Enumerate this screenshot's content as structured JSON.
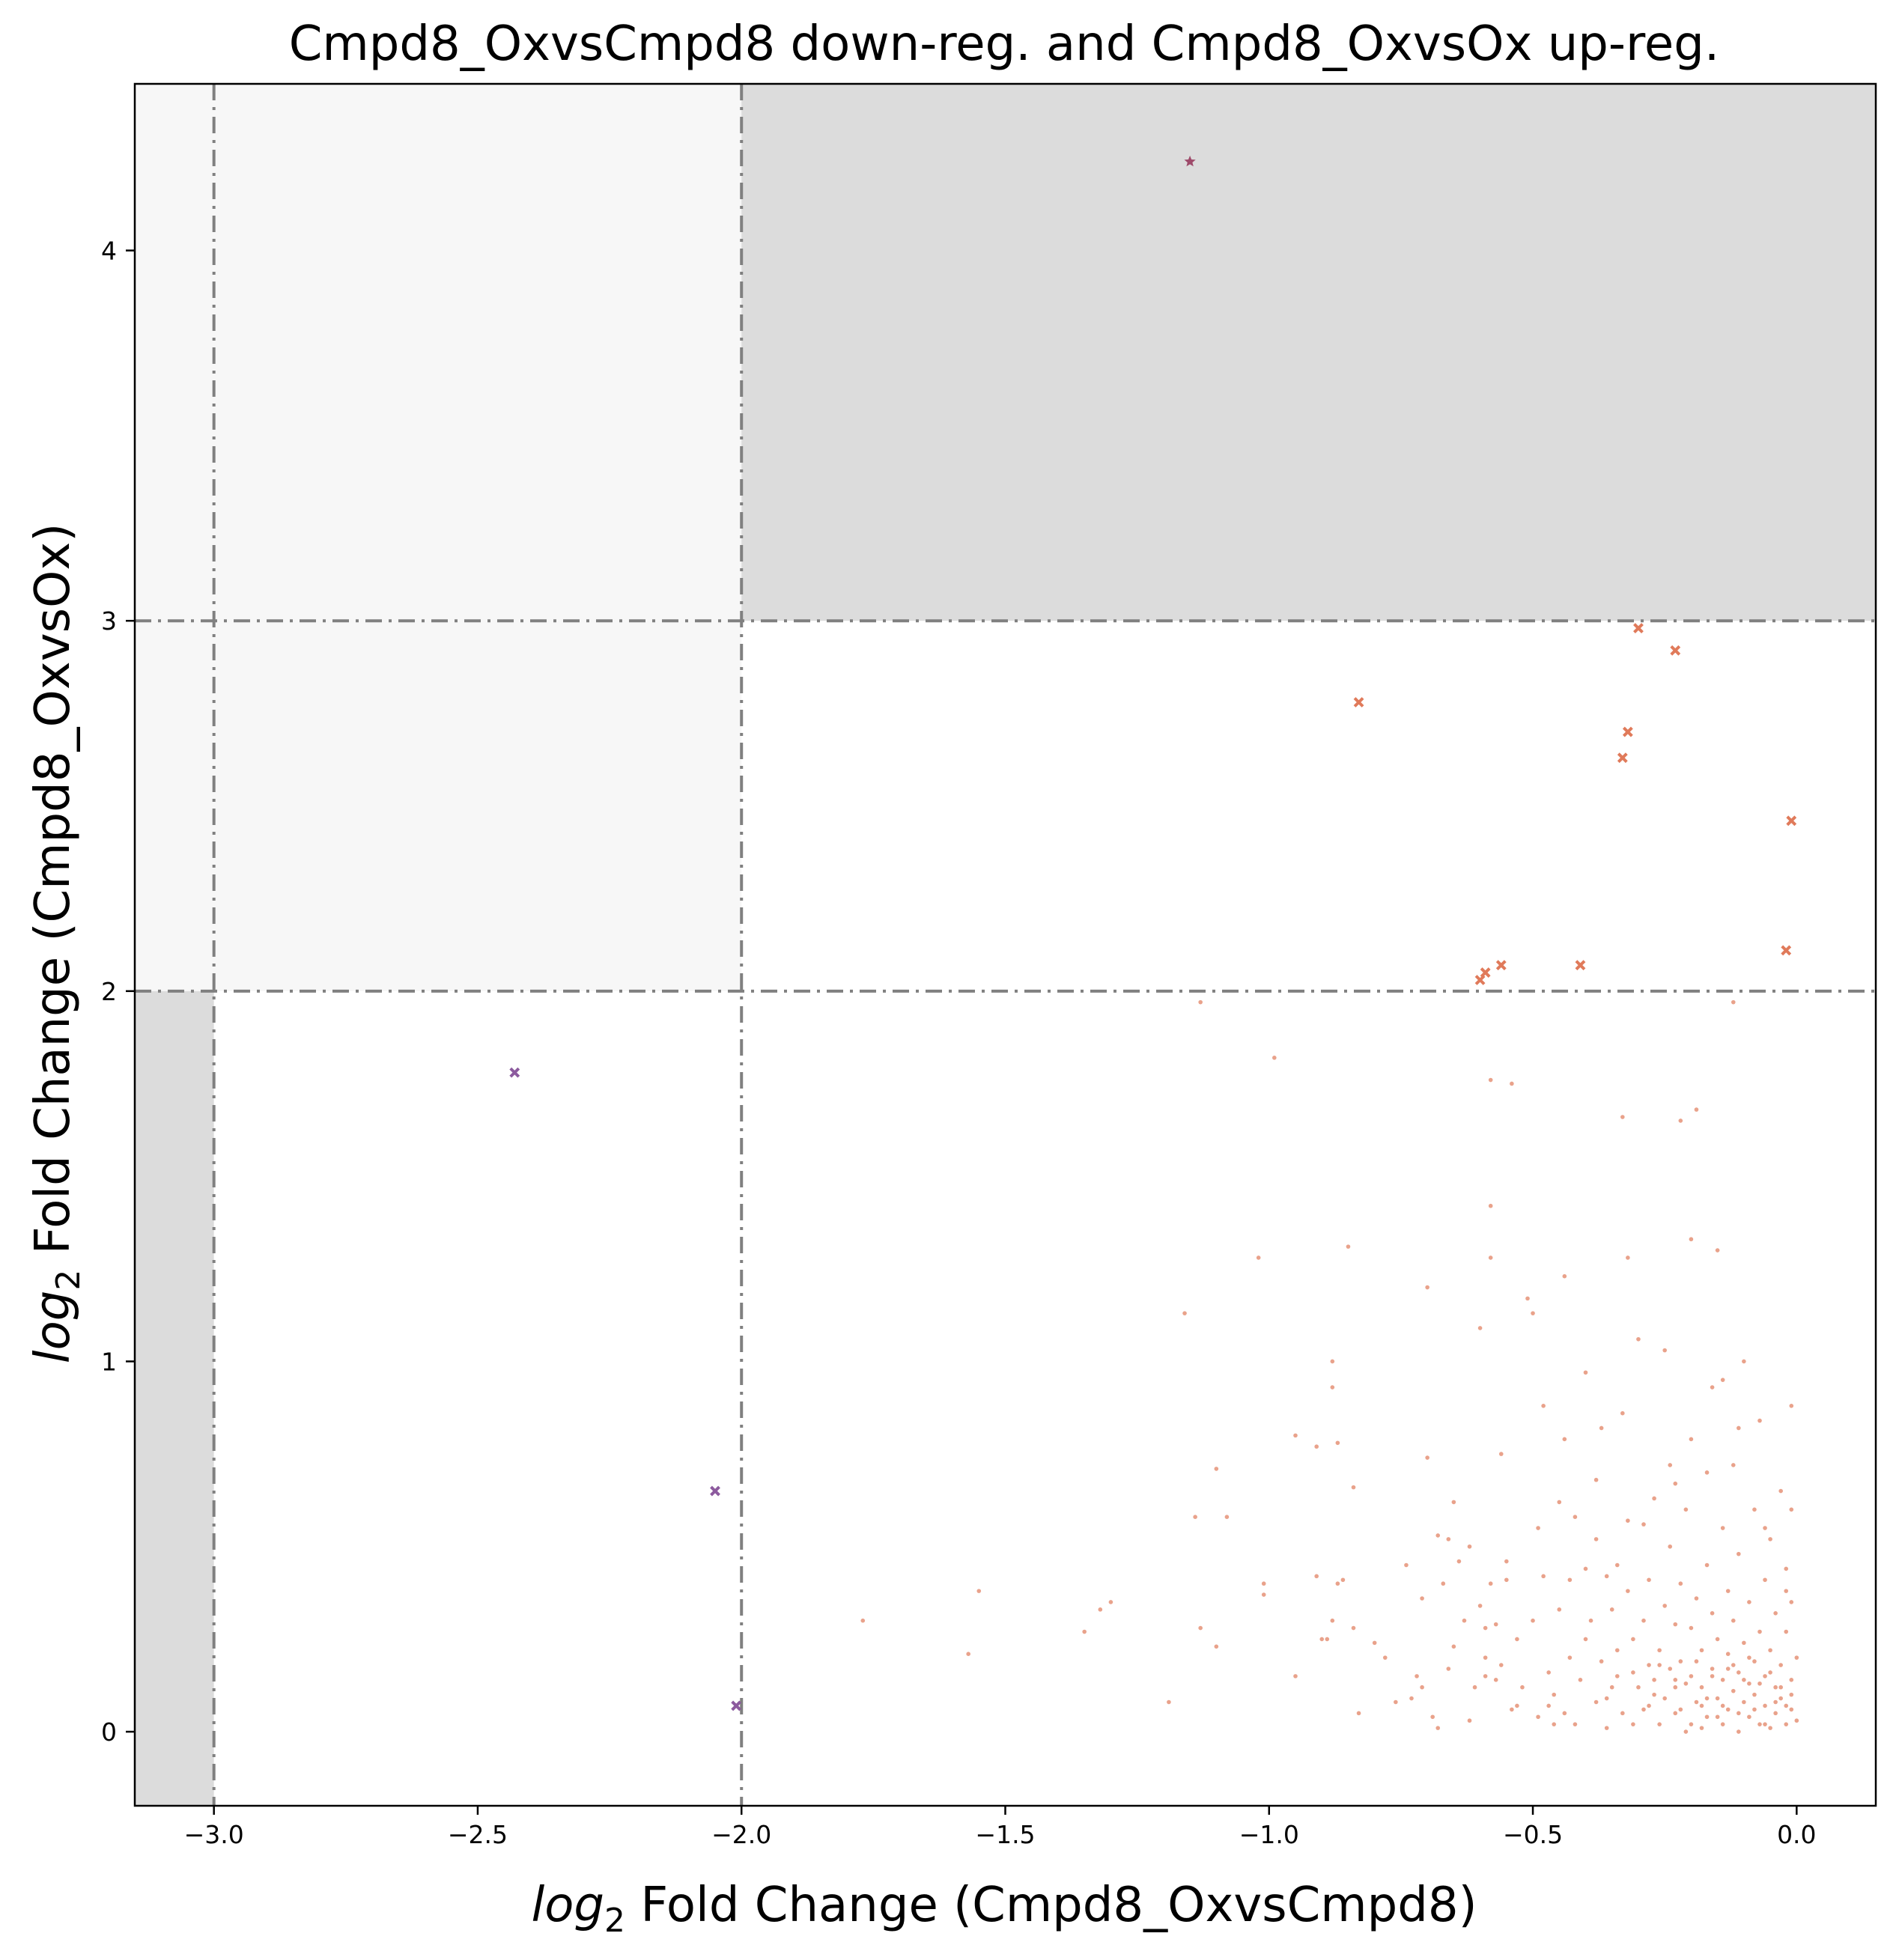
{
  "chart_data": {
    "type": "scatter",
    "title": "Cmpd8_OxvsCmpd8 down-reg. and Cmpd8_OxvsOx up-reg.",
    "xlabel_prefix": "log",
    "xlabel_sub": "2",
    "xlabel_suffix": " Fold Change (Cmpd8_OxvsCmpd8)",
    "ylabel_prefix": "log",
    "ylabel_sub": "2",
    "ylabel_suffix": " Fold Change (Cmpd8_OxvsOx)",
    "xlim": [
      -3.15,
      0.15
    ],
    "ylim": [
      -0.2,
      4.45
    ],
    "xticks": [
      -3.0,
      -2.5,
      -2.0,
      -1.5,
      -1.0,
      -0.5,
      0.0
    ],
    "xtick_labels": [
      "−3.0",
      "−2.5",
      "−2.0",
      "−1.5",
      "−1.0",
      "−0.5",
      "0.0"
    ],
    "yticks": [
      0,
      1,
      2,
      3,
      4
    ],
    "ytick_labels": [
      "0",
      "1",
      "2",
      "3",
      "4"
    ],
    "grid": false,
    "thresholds": {
      "x": [
        -3.0,
        -2.0
      ],
      "y": [
        2.0,
        3.0
      ]
    },
    "regions": [
      {
        "x": [
          -3.15,
          -3.0
        ],
        "y": [
          -0.2,
          2.0
        ],
        "color": "#dcdcdc"
      },
      {
        "x": [
          -3.15,
          -2.0
        ],
        "y": [
          2.0,
          4.45
        ],
        "color": "#f7f7f7"
      },
      {
        "x": [
          -2.0,
          0.15
        ],
        "y": [
          3.0,
          4.45
        ],
        "color": "#dcdcdc"
      }
    ],
    "series": [
      {
        "marker": "dot",
        "color": "#e07a5a",
        "points": [
          [
            -1.77,
            0.3
          ],
          [
            -1.57,
            0.21
          ],
          [
            -1.55,
            0.38
          ],
          [
            -1.35,
            0.27
          ],
          [
            -1.32,
            0.33
          ],
          [
            -1.3,
            0.35
          ],
          [
            -1.19,
            0.08
          ],
          [
            -1.16,
            1.13
          ],
          [
            -1.14,
            0.58
          ],
          [
            -1.13,
            0.28
          ],
          [
            -1.13,
            1.97
          ],
          [
            -1.1,
            0.71
          ],
          [
            -1.1,
            0.23
          ],
          [
            -1.02,
            1.28
          ],
          [
            -1.01,
            0.4
          ],
          [
            -1.01,
            0.37
          ],
          [
            -0.99,
            1.82
          ],
          [
            -0.95,
            0.8
          ],
          [
            -0.91,
            0.77
          ],
          [
            -0.9,
            0.25
          ],
          [
            -0.89,
            0.25
          ],
          [
            -0.88,
            0.3
          ],
          [
            -0.88,
            1.0
          ],
          [
            -0.88,
            0.93
          ],
          [
            -0.87,
            0.4
          ],
          [
            -0.87,
            0.78
          ],
          [
            -0.86,
            0.41
          ],
          [
            -0.85,
            1.31
          ],
          [
            -0.84,
            0.28
          ],
          [
            -0.84,
            0.66
          ],
          [
            -0.83,
            0.05
          ],
          [
            -0.8,
            0.24
          ],
          [
            -0.76,
            0.08
          ],
          [
            -0.74,
            0.45
          ],
          [
            -0.73,
            0.09
          ],
          [
            -0.72,
            0.15
          ],
          [
            -0.71,
            0.12
          ],
          [
            -0.7,
            0.74
          ],
          [
            -0.7,
            1.2
          ],
          [
            -0.69,
            0.04
          ],
          [
            -0.68,
            0.01
          ],
          [
            -0.68,
            0.53
          ],
          [
            -0.67,
            0.4
          ],
          [
            -0.66,
            0.52
          ],
          [
            -0.65,
            0.62
          ],
          [
            -0.64,
            0.46
          ],
          [
            -0.63,
            0.3
          ],
          [
            -0.62,
            0.5
          ],
          [
            -0.61,
            0.12
          ],
          [
            -0.6,
            0.34
          ],
          [
            -0.6,
            1.09
          ],
          [
            -0.59,
            0.28
          ],
          [
            -0.59,
            0.2
          ],
          [
            -0.59,
            0.15
          ],
          [
            -0.58,
            1.76
          ],
          [
            -0.58,
            0.4
          ],
          [
            -0.58,
            1.28
          ],
          [
            -0.58,
            1.42
          ],
          [
            -0.57,
            0.29
          ],
          [
            -0.56,
            0.18
          ],
          [
            -0.56,
            0.75
          ],
          [
            -0.55,
            0.41
          ],
          [
            -0.54,
            1.75
          ],
          [
            -0.54,
            0.06
          ],
          [
            -0.53,
            0.25
          ],
          [
            -0.52,
            0.12
          ],
          [
            -0.51,
            1.17
          ],
          [
            -0.5,
            0.3
          ],
          [
            -0.5,
            1.13
          ],
          [
            -0.49,
            0.55
          ],
          [
            -0.49,
            0.04
          ],
          [
            -0.48,
            0.42
          ],
          [
            -0.47,
            0.16
          ],
          [
            -0.47,
            0.07
          ],
          [
            -0.46,
            0.02
          ],
          [
            -0.45,
            0.33
          ],
          [
            -0.45,
            0.62
          ],
          [
            -0.44,
            1.23
          ],
          [
            -0.44,
            0.05
          ],
          [
            -0.44,
            0.79
          ],
          [
            -0.43,
            0.41
          ],
          [
            -0.42,
            0.58
          ],
          [
            -0.42,
            0.02
          ],
          [
            -0.41,
            0.14
          ],
          [
            -0.4,
            0.44
          ],
          [
            -0.4,
            0.25
          ],
          [
            -0.4,
            0.97
          ],
          [
            -0.39,
            0.3
          ],
          [
            -0.38,
            0.08
          ],
          [
            -0.38,
            0.52
          ],
          [
            -0.37,
            0.82
          ],
          [
            -0.37,
            0.19
          ],
          [
            -0.36,
            0.42
          ],
          [
            -0.36,
            0.01
          ],
          [
            -0.35,
            0.12
          ],
          [
            -0.35,
            0.33
          ],
          [
            -0.34,
            0.22
          ],
          [
            -0.34,
            0.45
          ],
          [
            -0.33,
            0.05
          ],
          [
            -0.33,
            1.66
          ],
          [
            -0.32,
            0.57
          ],
          [
            -0.32,
            0.38
          ],
          [
            -0.32,
            1.28
          ],
          [
            -0.31,
            0.02
          ],
          [
            -0.31,
            0.25
          ],
          [
            -0.3,
            0.12
          ],
          [
            -0.3,
            1.06
          ],
          [
            -0.29,
            0.56
          ],
          [
            -0.29,
            0.3
          ],
          [
            -0.28,
            0.07
          ],
          [
            -0.28,
            0.41
          ],
          [
            -0.28,
            0.18
          ],
          [
            -0.27,
            0.63
          ],
          [
            -0.27,
            0.14
          ],
          [
            -0.26,
            0.02
          ],
          [
            -0.26,
            0.22
          ],
          [
            -0.25,
            0.34
          ],
          [
            -0.25,
            1.03
          ],
          [
            -0.25,
            0.09
          ],
          [
            -0.24,
            0.72
          ],
          [
            -0.24,
            0.5
          ],
          [
            -0.23,
            0.29
          ],
          [
            -0.23,
            0.12
          ],
          [
            -0.23,
            0.05
          ],
          [
            -0.22,
            0.19
          ],
          [
            -0.22,
            1.65
          ],
          [
            -0.22,
            0.4
          ],
          [
            -0.21,
            0.0
          ],
          [
            -0.21,
            0.6
          ],
          [
            -0.2,
            0.15
          ],
          [
            -0.2,
            0.28
          ],
          [
            -0.2,
            1.33
          ],
          [
            -0.19,
            0.08
          ],
          [
            -0.19,
            0.36
          ],
          [
            -0.19,
            1.68
          ],
          [
            -0.18,
            0.22
          ],
          [
            -0.18,
            0.01
          ],
          [
            -0.18,
            0.12
          ],
          [
            -0.17,
            0.7
          ],
          [
            -0.17,
            0.45
          ],
          [
            -0.17,
            0.04
          ],
          [
            -0.16,
            0.32
          ],
          [
            -0.16,
            0.17
          ],
          [
            -0.16,
            0.93
          ],
          [
            -0.15,
            0.09
          ],
          [
            -0.15,
            0.25
          ],
          [
            -0.15,
            1.3
          ],
          [
            -0.14,
            0.02
          ],
          [
            -0.14,
            0.55
          ],
          [
            -0.14,
            0.14
          ],
          [
            -0.13,
            0.38
          ],
          [
            -0.13,
            0.06
          ],
          [
            -0.13,
            0.21
          ],
          [
            -0.12,
            0.11
          ],
          [
            -0.12,
            0.72
          ],
          [
            -0.12,
            0.3
          ],
          [
            -0.11,
            0.0
          ],
          [
            -0.11,
            0.16
          ],
          [
            -0.11,
            0.48
          ],
          [
            -0.1,
            0.08
          ],
          [
            -0.1,
            0.24
          ],
          [
            -0.1,
            1.0
          ],
          [
            -0.09,
            0.13
          ],
          [
            -0.09,
            0.35
          ],
          [
            -0.09,
            0.04
          ],
          [
            -0.08,
            0.19
          ],
          [
            -0.08,
            0.6
          ],
          [
            -0.08,
            0.1
          ],
          [
            -0.07,
            0.27
          ],
          [
            -0.07,
            0.02
          ],
          [
            -0.07,
            0.84
          ],
          [
            -0.06,
            0.15
          ],
          [
            -0.06,
            0.41
          ],
          [
            -0.06,
            0.07
          ],
          [
            -0.05,
            0.22
          ],
          [
            -0.05,
            0.01
          ],
          [
            -0.05,
            0.52
          ],
          [
            -0.04,
            0.12
          ],
          [
            -0.04,
            0.32
          ],
          [
            -0.04,
            0.05
          ],
          [
            -0.03,
            0.18
          ],
          [
            -0.03,
            0.65
          ],
          [
            -0.03,
            0.09
          ],
          [
            -0.02,
            0.27
          ],
          [
            -0.02,
            0.02
          ],
          [
            -0.02,
            0.44
          ],
          [
            -0.01,
            0.14
          ],
          [
            -0.01,
            0.35
          ],
          [
            -0.01,
            0.06
          ],
          [
            -0.01,
            0.88
          ],
          [
            0.0,
            0.2
          ],
          [
            0.0,
            0.03
          ],
          [
            -0.36,
            0.09
          ],
          [
            -0.34,
            0.15
          ],
          [
            -0.27,
            0.1
          ],
          [
            -0.24,
            0.17
          ],
          [
            -0.22,
            0.06
          ],
          [
            -0.21,
            0.13
          ],
          [
            -0.19,
            0.19
          ],
          [
            -0.17,
            0.09
          ],
          [
            -0.16,
            0.15
          ],
          [
            -0.14,
            0.07
          ],
          [
            -0.13,
            0.17
          ],
          [
            -0.11,
            0.05
          ],
          [
            -0.1,
            0.14
          ],
          [
            -0.09,
            0.2
          ],
          [
            -0.08,
            0.06
          ],
          [
            -0.07,
            0.13
          ],
          [
            -0.06,
            0.02
          ],
          [
            -0.05,
            0.16
          ],
          [
            -0.04,
            0.08
          ],
          [
            -0.03,
            0.12
          ],
          [
            -0.02,
            0.07
          ],
          [
            -0.01,
            0.1
          ],
          [
            -0.12,
            0.18
          ],
          [
            -0.15,
            0.04
          ],
          [
            -0.18,
            0.07
          ],
          [
            -0.23,
            0.14
          ],
          [
            -0.29,
            0.06
          ],
          [
            -0.31,
            0.16
          ],
          [
            -0.26,
            0.18
          ],
          [
            -0.2,
            0.02
          ],
          [
            -0.43,
            0.2
          ],
          [
            -0.46,
            0.1
          ],
          [
            -0.53,
            0.07
          ],
          [
            -0.57,
            0.14
          ],
          [
            -0.62,
            0.03
          ],
          [
            -0.66,
            0.17
          ],
          [
            -0.12,
            1.97
          ],
          [
            -0.23,
            0.67
          ],
          [
            -0.06,
            0.55
          ],
          [
            -0.02,
            0.38
          ],
          [
            -0.01,
            0.6
          ],
          [
            -0.11,
            0.82
          ],
          [
            -0.14,
            0.95
          ],
          [
            -0.2,
            0.79
          ],
          [
            -0.33,
            0.86
          ],
          [
            -0.38,
            0.68
          ],
          [
            -0.48,
            0.88
          ],
          [
            -0.55,
            0.46
          ],
          [
            -0.65,
            0.23
          ],
          [
            -0.71,
            0.36
          ],
          [
            -0.78,
            0.2
          ],
          [
            -0.91,
            0.42
          ],
          [
            -1.08,
            0.58
          ],
          [
            -0.95,
            0.15
          ]
        ]
      },
      {
        "marker": "x",
        "color": "#e07a5a",
        "points": [
          [
            -0.83,
            2.78
          ],
          [
            -0.3,
            2.98
          ],
          [
            -0.23,
            2.92
          ],
          [
            -0.32,
            2.7
          ],
          [
            -0.33,
            2.63
          ],
          [
            -0.01,
            2.46
          ],
          [
            -0.02,
            2.11
          ],
          [
            -0.41,
            2.07
          ],
          [
            -0.56,
            2.07
          ],
          [
            -0.59,
            2.05
          ],
          [
            -0.6,
            2.03
          ]
        ]
      },
      {
        "marker": "x",
        "color": "#8c5a9e",
        "points": [
          [
            -2.43,
            1.78
          ],
          [
            -2.05,
            0.65
          ],
          [
            -2.01,
            0.07
          ]
        ]
      },
      {
        "marker": "star",
        "color": "#9e4a6a",
        "points": [
          [
            -1.15,
            4.24
          ]
        ]
      }
    ]
  }
}
